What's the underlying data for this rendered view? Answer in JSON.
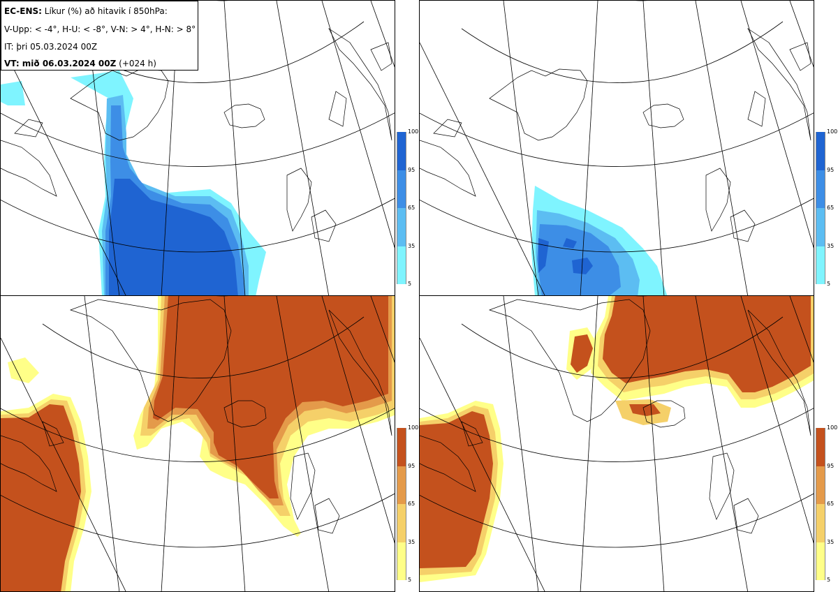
{
  "header": {
    "model": "EC-ENS:",
    "parameter": " Líkur (%) að hitavik í 850hPa:",
    "thresholds": "V-Upp: < -4°, H-U: < -8°, V-N: > 4°, H-N: > 8°",
    "initial_time": "IT: þri 05.03.2024 00Z",
    "valid_label": "VT: mið 06.03.2024 00Z",
    "lead_time": " (+024 h)"
  },
  "colorbar_cold": {
    "ticks": [
      "100",
      "95",
      "65",
      "35",
      "5"
    ],
    "colors": [
      "#1f64d2",
      "#3d8ee6",
      "#5cbdf2",
      "#7ff4ff"
    ]
  },
  "colorbar_warm": {
    "ticks": [
      "100",
      "95",
      "65",
      "35",
      "5"
    ],
    "colors": [
      "#c4511d",
      "#e49a4a",
      "#f5d069",
      "#ffff88"
    ]
  },
  "panels": [
    {
      "id": "upper-left",
      "quantity": "probability of anomaly < -4°"
    },
    {
      "id": "upper-right",
      "quantity": "probability of anomaly < -8°"
    },
    {
      "id": "lower-left",
      "quantity": "probability of anomaly > 4°"
    },
    {
      "id": "lower-right",
      "quantity": "probability of anomaly > 8°"
    }
  ]
}
